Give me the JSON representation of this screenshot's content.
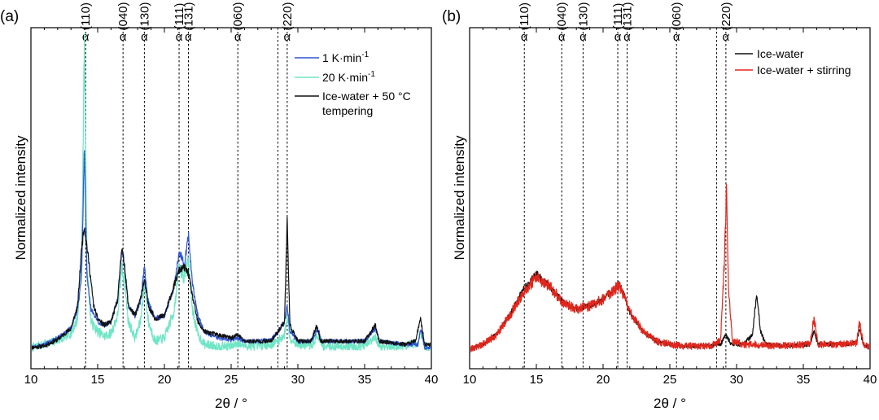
{
  "colors": {
    "blue": "#2f55d4",
    "cyan": "#6fe6c6",
    "black": "#111111",
    "red": "#e3261c"
  },
  "chart_data": [
    {
      "type": "line",
      "panel_label": "(a)",
      "xlabel": "2θ / °",
      "ylabel": "Normalized intensity",
      "xlim": [
        10,
        40
      ],
      "ylim": [
        0,
        100
      ],
      "xticks": [
        10,
        15,
        20,
        25,
        30,
        35,
        40
      ],
      "xtick_labels": [
        "10",
        "15",
        "20",
        "25",
        "30",
        "35",
        "40"
      ],
      "yticks_shown": false,
      "reference_lines": [
        {
          "x": 14.1,
          "symbol": "α",
          "index": "(110)"
        },
        {
          "x": 16.9,
          "symbol": "α",
          "index": "(040)"
        },
        {
          "x": 18.5,
          "symbol": "α",
          "index": "(130)"
        },
        {
          "x": 21.1,
          "symbol": "α",
          "index": "(111)"
        },
        {
          "x": 21.8,
          "symbol": "α",
          "index": "(131)"
        },
        {
          "x": 25.5,
          "symbol": "α",
          "index": "(060)"
        },
        {
          "x": 28.5,
          "symbol": "",
          "index": ""
        },
        {
          "x": 29.2,
          "symbol": "α",
          "index": "(220)"
        }
      ],
      "legend": {
        "placement": "top-right",
        "entries": [
          {
            "label": "1 K·min",
            "superscript": "-1",
            "color": "#2f55d4"
          },
          {
            "label": "20 K·min",
            "superscript": "-1",
            "color": "#6fe6c6"
          },
          {
            "label": "Ice-water + 50 °C",
            "label2": "tempering",
            "color": "#111111"
          }
        ]
      },
      "series": [
        {
          "name": "20 K·min-1",
          "color": "#6fe6c6",
          "noise": 2.2,
          "seed": 7,
          "points": [
            [
              10,
              2
            ],
            [
              11,
              3
            ],
            [
              12,
              4.2
            ],
            [
              13,
              6.5
            ],
            [
              13.5,
              11
            ],
            [
              13.8,
              30
            ],
            [
              14.0,
              97
            ],
            [
              14.2,
              28
            ],
            [
              14.5,
              10
            ],
            [
              15,
              7
            ],
            [
              15.5,
              5.5
            ],
            [
              16,
              6.5
            ],
            [
              16.5,
              12
            ],
            [
              16.8,
              27
            ],
            [
              17.0,
              23
            ],
            [
              17.3,
              10
            ],
            [
              17.8,
              5
            ],
            [
              18.2,
              10
            ],
            [
              18.5,
              22
            ],
            [
              18.8,
              10
            ],
            [
              19.3,
              4
            ],
            [
              20,
              5
            ],
            [
              20.7,
              13
            ],
            [
              21.1,
              27
            ],
            [
              21.5,
              24
            ],
            [
              21.8,
              30
            ],
            [
              22.1,
              14
            ],
            [
              22.5,
              6
            ],
            [
              23,
              3
            ],
            [
              24,
              2.5
            ],
            [
              25,
              2.5
            ],
            [
              25.5,
              3.5
            ],
            [
              26,
              2.5
            ],
            [
              27,
              2.5
            ],
            [
              28,
              3
            ],
            [
              28.5,
              4
            ],
            [
              29.0,
              6
            ],
            [
              29.2,
              12
            ],
            [
              29.4,
              5
            ],
            [
              30,
              3
            ],
            [
              31,
              2.5
            ],
            [
              31.5,
              6
            ],
            [
              31.8,
              2.5
            ],
            [
              33,
              2.5
            ],
            [
              35,
              2.5
            ],
            [
              35.8,
              5
            ],
            [
              36.1,
              2.5
            ],
            [
              38,
              2.5
            ],
            [
              39,
              3.5
            ],
            [
              39.2,
              7
            ],
            [
              39.5,
              2.5
            ],
            [
              40,
              2
            ]
          ]
        },
        {
          "name": "1 K·min-1",
          "color": "#2f55d4",
          "noise": 1.0,
          "seed": 3,
          "points": [
            [
              10,
              2
            ],
            [
              11,
              3
            ],
            [
              12,
              5
            ],
            [
              13,
              8
            ],
            [
              13.5,
              14
            ],
            [
              13.8,
              24
            ],
            [
              14.0,
              64
            ],
            [
              14.2,
              24
            ],
            [
              14.5,
              14
            ],
            [
              15,
              10
            ],
            [
              15.5,
              9
            ],
            [
              16,
              10
            ],
            [
              16.5,
              17
            ],
            [
              16.8,
              33
            ],
            [
              17.0,
              28
            ],
            [
              17.3,
              15
            ],
            [
              17.8,
              12
            ],
            [
              18.2,
              16
            ],
            [
              18.5,
              27
            ],
            [
              18.8,
              16
            ],
            [
              19.3,
              11
            ],
            [
              20,
              12
            ],
            [
              20.7,
              20
            ],
            [
              21.1,
              32
            ],
            [
              21.5,
              28
            ],
            [
              21.8,
              37
            ],
            [
              22.1,
              22
            ],
            [
              22.5,
              12
            ],
            [
              23,
              7
            ],
            [
              24,
              5
            ],
            [
              25,
              4.5
            ],
            [
              25.5,
              5
            ],
            [
              26,
              4
            ],
            [
              27,
              4
            ],
            [
              28,
              4.5
            ],
            [
              28.5,
              7
            ],
            [
              29.0,
              10
            ],
            [
              29.2,
              15
            ],
            [
              29.4,
              7
            ],
            [
              30,
              4
            ],
            [
              31,
              4
            ],
            [
              31.5,
              8
            ],
            [
              31.8,
              4
            ],
            [
              33,
              4
            ],
            [
              35,
              4
            ],
            [
              35.8,
              8
            ],
            [
              36.1,
              4
            ],
            [
              38,
              3
            ],
            [
              39,
              3
            ],
            [
              39.2,
              8
            ],
            [
              39.5,
              2
            ],
            [
              40,
              2
            ]
          ]
        },
        {
          "name": "Ice-water + 50 °C tempering",
          "color": "#111111",
          "noise": 1.0,
          "seed": 11,
          "points": [
            [
              10,
              2
            ],
            [
              11,
              2.5
            ],
            [
              12,
              4.5
            ],
            [
              13,
              8
            ],
            [
              13.5,
              15
            ],
            [
              13.8,
              33
            ],
            [
              14.0,
              40
            ],
            [
              14.3,
              30
            ],
            [
              14.7,
              15
            ],
            [
              15,
              11
            ],
            [
              15.5,
              9
            ],
            [
              16,
              10
            ],
            [
              16.5,
              17
            ],
            [
              16.8,
              33
            ],
            [
              17.0,
              28
            ],
            [
              17.3,
              15
            ],
            [
              17.8,
              12
            ],
            [
              18.2,
              17
            ],
            [
              18.5,
              23
            ],
            [
              18.8,
              15
            ],
            [
              19.3,
              11
            ],
            [
              20,
              12
            ],
            [
              20.7,
              21
            ],
            [
              21.1,
              26
            ],
            [
              21.5,
              27
            ],
            [
              21.8,
              25
            ],
            [
              22.1,
              18
            ],
            [
              22.5,
              10
            ],
            [
              23,
              7
            ],
            [
              24,
              6
            ],
            [
              25,
              5
            ],
            [
              25.5,
              6
            ],
            [
              26,
              4
            ],
            [
              27,
              4
            ],
            [
              28,
              4
            ],
            [
              28.5,
              7
            ],
            [
              29.0,
              10
            ],
            [
              29.2,
              42
            ],
            [
              29.4,
              9
            ],
            [
              30,
              4
            ],
            [
              31,
              4
            ],
            [
              31.4,
              9
            ],
            [
              31.7,
              4
            ],
            [
              33,
              4
            ],
            [
              35,
              4
            ],
            [
              35.8,
              9
            ],
            [
              36.1,
              4
            ],
            [
              38,
              3
            ],
            [
              38.8,
              4
            ],
            [
              39.2,
              11
            ],
            [
              39.5,
              3
            ],
            [
              40,
              3
            ]
          ]
        }
      ]
    },
    {
      "type": "line",
      "panel_label": "(b)",
      "xlabel": "2θ / °",
      "ylabel": "Normalized intensity",
      "xlim": [
        10,
        40
      ],
      "ylim": [
        0,
        100
      ],
      "xticks": [
        10,
        15,
        20,
        25,
        30,
        35,
        40
      ],
      "xtick_labels": [
        "10",
        "15",
        "20",
        "25",
        "30",
        "35",
        "40"
      ],
      "yticks_shown": false,
      "reference_lines": [
        {
          "x": 14.1,
          "symbol": "α",
          "index": "(110)"
        },
        {
          "x": 16.9,
          "symbol": "α",
          "index": "(040)"
        },
        {
          "x": 18.5,
          "symbol": "α",
          "index": "(130)"
        },
        {
          "x": 21.1,
          "symbol": "α",
          "index": "(111)"
        },
        {
          "x": 21.8,
          "symbol": "α",
          "index": "(131)"
        },
        {
          "x": 25.5,
          "symbol": "α",
          "index": "(060)"
        },
        {
          "x": 28.5,
          "symbol": "",
          "index": ""
        },
        {
          "x": 29.2,
          "symbol": "α",
          "index": "(220)"
        }
      ],
      "legend": {
        "placement": "top-right",
        "entries": [
          {
            "label": "Ice-water",
            "color": "#111111"
          },
          {
            "label": "Ice-water + stirring",
            "color": "#e3261c"
          }
        ]
      },
      "series": [
        {
          "name": "Ice-water",
          "color": "#111111",
          "noise": 1.0,
          "seed": 5,
          "points": [
            [
              10,
              1.5
            ],
            [
              11,
              3
            ],
            [
              12,
              6
            ],
            [
              13,
              12
            ],
            [
              14,
              20
            ],
            [
              15,
              25
            ],
            [
              16,
              21
            ],
            [
              17,
              16
            ],
            [
              18,
              14
            ],
            [
              19,
              15
            ],
            [
              20,
              17
            ],
            [
              20.8,
              20
            ],
            [
              21.2,
              22
            ],
            [
              21.6,
              18
            ],
            [
              22,
              13
            ],
            [
              23,
              7
            ],
            [
              24,
              4
            ],
            [
              25,
              3
            ],
            [
              26,
              2.5
            ],
            [
              27,
              2.5
            ],
            [
              28,
              2.5
            ],
            [
              28.8,
              3
            ],
            [
              29.2,
              6
            ],
            [
              29.6,
              3
            ],
            [
              30.5,
              3
            ],
            [
              31.2,
              6
            ],
            [
              31.5,
              19
            ],
            [
              31.8,
              7
            ],
            [
              32.2,
              3
            ],
            [
              34,
              2.5
            ],
            [
              35.5,
              3
            ],
            [
              35.8,
              7
            ],
            [
              36.1,
              3
            ],
            [
              38,
              3
            ],
            [
              39,
              3.5
            ],
            [
              39.2,
              8
            ],
            [
              39.5,
              3
            ],
            [
              40,
              2
            ]
          ]
        },
        {
          "name": "Ice-water + stirring",
          "color": "#e3261c",
          "noise": 1.8,
          "seed": 9,
          "points": [
            [
              10,
              1.5
            ],
            [
              11,
              3
            ],
            [
              12,
              6
            ],
            [
              13,
              12
            ],
            [
              14,
              19
            ],
            [
              15,
              24
            ],
            [
              16,
              21
            ],
            [
              17,
              16
            ],
            [
              18,
              14
            ],
            [
              19,
              15
            ],
            [
              20,
              17
            ],
            [
              20.8,
              20
            ],
            [
              21.2,
              21
            ],
            [
              21.6,
              18
            ],
            [
              22,
              13
            ],
            [
              23,
              7
            ],
            [
              24,
              4
            ],
            [
              25,
              3
            ],
            [
              26,
              2.5
            ],
            [
              27,
              2.5
            ],
            [
              28,
              2.5
            ],
            [
              28.8,
              4
            ],
            [
              29.1,
              30
            ],
            [
              29.25,
              52
            ],
            [
              29.4,
              20
            ],
            [
              29.7,
              4
            ],
            [
              30.5,
              3
            ],
            [
              31.5,
              3
            ],
            [
              33,
              2.5
            ],
            [
              35.5,
              3
            ],
            [
              35.8,
              11
            ],
            [
              36.1,
              3
            ],
            [
              38,
              3
            ],
            [
              39,
              3.5
            ],
            [
              39.2,
              10
            ],
            [
              39.5,
              3
            ],
            [
              40,
              2
            ]
          ]
        }
      ]
    }
  ]
}
